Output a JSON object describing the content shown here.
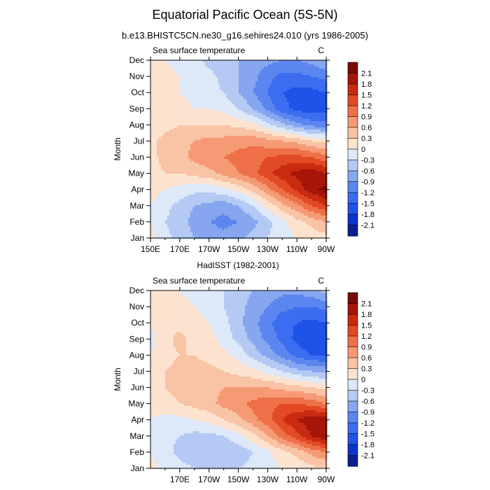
{
  "figure": {
    "title": "Equatorial Pacific Ocean (5S-5N)",
    "subtitle": "b.e13.BHISTC5CN.ne30_g16.sehires24.010 (yrs 1986-2005)"
  },
  "colors": {
    "levels": [
      -2.1,
      -1.8,
      -1.5,
      -1.2,
      -0.9,
      -0.6,
      -0.3,
      0,
      0.3,
      0.6,
      0.9,
      1.2,
      1.5,
      1.8,
      2.1
    ],
    "fills": [
      "#0a1f8f",
      "#0c34c8",
      "#1f52e6",
      "#3c6cf0",
      "#5c86ef",
      "#86a6f0",
      "#b4c9f3",
      "#dde8f8",
      "#fde3cf",
      "#f9c3a5",
      "#f59a75",
      "#ee7048",
      "#e24a26",
      "#c92b10",
      "#a5150a",
      "#7a0a05"
    ]
  },
  "chart_data": [
    {
      "type": "contour",
      "title": "b.e13.BHISTC5CN.ne30_g16.sehires24.010 (yrs 1986-2005)",
      "left_label": "Sea surface temperature",
      "units": "C",
      "ylabel": "Month",
      "x_ticks": [
        "150E",
        "170E",
        "170W",
        "150W",
        "130W",
        "110W",
        "90W"
      ],
      "y_ticks": [
        "Jan",
        "Feb",
        "Mar",
        "Apr",
        "May",
        "Jun",
        "Jul",
        "Aug",
        "Sep",
        "Oct",
        "Nov",
        "Dec"
      ],
      "colorbar_labels": [
        "2.1",
        "1.8",
        "1.5",
        "1.2",
        "0.9",
        "0.6",
        "0.3",
        "0",
        "-0.3",
        "-0.6",
        "-0.9",
        "-1.2",
        "-1.5",
        "-1.8",
        "-2.1"
      ],
      "x_lon_range": [
        150,
        270
      ],
      "months": [
        "Jan",
        "Feb",
        "Mar",
        "Apr",
        "May",
        "Jun",
        "Jul",
        "Aug",
        "Sep",
        "Oct",
        "Nov",
        "Dec"
      ],
      "lons": [
        150,
        160,
        170,
        180,
        190,
        200,
        210,
        220,
        230,
        240,
        250,
        260,
        270
      ],
      "sst_anomaly": [
        [
          0.1,
          -0.2,
          -0.4,
          -0.6,
          -0.7,
          -0.8,
          -0.7,
          -0.5,
          -0.3,
          -0.1,
          0.0,
          0.1,
          0.2
        ],
        [
          0.0,
          -0.3,
          -0.5,
          -0.7,
          -0.9,
          -1.0,
          -0.9,
          -0.7,
          -0.4,
          -0.1,
          0.2,
          0.4,
          0.6
        ],
        [
          0.0,
          -0.2,
          -0.4,
          -0.6,
          -0.7,
          -0.8,
          -0.6,
          -0.3,
          0.1,
          0.5,
          0.8,
          1.2,
          1.5
        ],
        [
          0.1,
          0.0,
          -0.1,
          -0.2,
          -0.2,
          -0.1,
          0.1,
          0.4,
          0.8,
          1.2,
          1.6,
          2.0,
          2.2
        ],
        [
          0.2,
          0.3,
          0.3,
          0.4,
          0.5,
          0.7,
          0.9,
          1.1,
          1.4,
          1.7,
          1.9,
          2.0,
          1.8
        ],
        [
          0.2,
          0.4,
          0.5,
          0.7,
          0.8,
          0.9,
          1.0,
          1.1,
          1.2,
          1.3,
          1.3,
          1.2,
          1.0
        ],
        [
          0.2,
          0.4,
          0.5,
          0.6,
          0.7,
          0.7,
          0.8,
          0.8,
          0.7,
          0.6,
          0.5,
          0.3,
          0.2
        ],
        [
          0.1,
          0.2,
          0.3,
          0.3,
          0.3,
          0.3,
          0.2,
          0.1,
          -0.2,
          -0.5,
          -0.8,
          -1.0,
          -1.1
        ],
        [
          0.0,
          0.1,
          0.1,
          0.0,
          0.0,
          -0.1,
          -0.3,
          -0.6,
          -1.0,
          -1.4,
          -1.6,
          -1.7,
          -1.6
        ],
        [
          0.0,
          0.1,
          0.0,
          -0.1,
          -0.2,
          -0.3,
          -0.6,
          -0.9,
          -1.2,
          -1.5,
          -1.6,
          -1.6,
          -1.5
        ],
        [
          0.1,
          0.1,
          0.0,
          -0.1,
          -0.2,
          -0.4,
          -0.6,
          -0.8,
          -1.1,
          -1.3,
          -1.3,
          -1.2,
          -1.1
        ],
        [
          0.1,
          0.0,
          -0.1,
          -0.2,
          -0.4,
          -0.5,
          -0.6,
          -0.7,
          -0.8,
          -0.9,
          -0.9,
          -0.8,
          -0.6
        ]
      ]
    },
    {
      "type": "contour",
      "title": "HadISST (1982-2001)",
      "left_label": "Sea surface temperature",
      "units": "C",
      "ylabel": "Month",
      "x_ticks": [
        "170E",
        "170W",
        "150W",
        "130W",
        "110W",
        "90W"
      ],
      "y_ticks": [
        "Jan",
        "Feb",
        "Mar",
        "Apr",
        "May",
        "Jun",
        "Jul",
        "Aug",
        "Sep",
        "Oct",
        "Nov",
        "Dec"
      ],
      "colorbar_labels": [
        "2.1",
        "1.8",
        "1.5",
        "1.2",
        "0.9",
        "0.6",
        "0.3",
        "0",
        "-0.3",
        "-0.6",
        "-0.9",
        "-1.2",
        "-1.5",
        "-1.8",
        "-2.1"
      ],
      "x_lon_range": [
        150,
        270
      ],
      "months": [
        "Jan",
        "Feb",
        "Mar",
        "Apr",
        "May",
        "Jun",
        "Jul",
        "Aug",
        "Sep",
        "Oct",
        "Nov",
        "Dec"
      ],
      "lons": [
        150,
        160,
        170,
        180,
        190,
        200,
        210,
        220,
        230,
        240,
        250,
        260,
        270
      ],
      "sst_anomaly": [
        [
          0.1,
          -0.1,
          -0.2,
          -0.3,
          -0.4,
          -0.4,
          -0.3,
          -0.2,
          -0.1,
          0.0,
          0.1,
          0.2,
          0.3
        ],
        [
          0.0,
          -0.2,
          -0.4,
          -0.5,
          -0.6,
          -0.6,
          -0.5,
          -0.3,
          -0.1,
          0.2,
          0.4,
          0.7,
          0.9
        ],
        [
          -0.1,
          -0.2,
          -0.3,
          -0.4,
          -0.4,
          -0.3,
          -0.1,
          0.2,
          0.6,
          1.0,
          1.4,
          1.8,
          2.1
        ],
        [
          0.0,
          -0.1,
          -0.1,
          0.0,
          0.1,
          0.3,
          0.5,
          0.8,
          1.1,
          1.5,
          1.8,
          2.0,
          2.1
        ],
        [
          0.1,
          0.2,
          0.3,
          0.4,
          0.5,
          0.7,
          0.8,
          1.0,
          1.1,
          1.2,
          1.2,
          1.1,
          0.9
        ],
        [
          0.2,
          0.3,
          0.4,
          0.5,
          0.5,
          0.6,
          0.6,
          0.6,
          0.6,
          0.5,
          0.4,
          0.3,
          0.2
        ],
        [
          0.1,
          0.3,
          0.4,
          0.4,
          0.4,
          0.3,
          0.2,
          0.1,
          -0.1,
          -0.3,
          -0.5,
          -0.6,
          -0.7
        ],
        [
          0.0,
          0.2,
          0.3,
          0.3,
          0.2,
          0.1,
          -0.1,
          -0.4,
          -0.7,
          -1.0,
          -1.3,
          -1.5,
          -1.5
        ],
        [
          -0.1,
          0.2,
          0.4,
          0.2,
          0.1,
          -0.1,
          -0.4,
          -0.7,
          -1.0,
          -1.3,
          -1.6,
          -1.8,
          -1.7
        ],
        [
          0.0,
          0.2,
          0.2,
          0.1,
          0.0,
          -0.2,
          -0.5,
          -0.8,
          -1.1,
          -1.4,
          -1.5,
          -1.6,
          -1.5
        ],
        [
          0.1,
          0.2,
          0.1,
          0.0,
          -0.1,
          -0.3,
          -0.5,
          -0.7,
          -0.9,
          -1.1,
          -1.2,
          -1.2,
          -1.1
        ],
        [
          0.1,
          0.1,
          0.0,
          -0.1,
          -0.2,
          -0.3,
          -0.5,
          -0.6,
          -0.7,
          -0.8,
          -0.8,
          -0.7,
          -0.5
        ]
      ]
    }
  ]
}
